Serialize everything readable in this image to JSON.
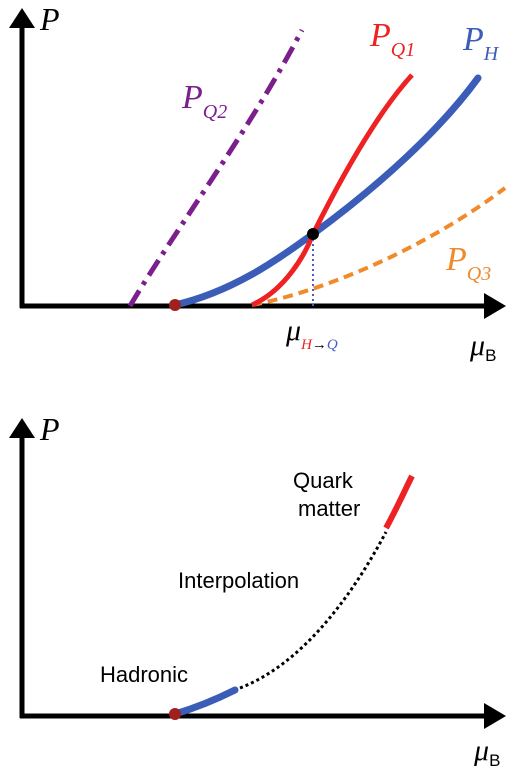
{
  "colors": {
    "axis": "#000000",
    "hadronic": "#3b5db8",
    "quark1": "#ee2222",
    "quark2": "#7a1f8c",
    "quark3": "#f08a2a",
    "crossing_guide": "#4a5cc0",
    "transition_point": "#000000",
    "onset_point": "#a02020",
    "interpolation": "#000000"
  },
  "top_panel": {
    "y_axis_label": "P",
    "x_axis_label_symbol": "μ",
    "x_axis_label_subscript": "B",
    "curves": [
      {
        "label_main": "P",
        "label_sub": "Q2"
      },
      {
        "label_main": "P",
        "label_sub": "Q1"
      },
      {
        "label_main": "P",
        "label_sub": "H"
      },
      {
        "label_main": "P",
        "label_sub": "Q3"
      }
    ],
    "transition_label_symbol": "μ",
    "transition_label_from": "H",
    "transition_label_arrow": "→",
    "transition_label_to": "Q"
  },
  "bottom_panel": {
    "y_axis_label": "P",
    "x_axis_label_symbol": "μ",
    "x_axis_label_subscript": "B",
    "label_quark_line1": "Quark",
    "label_quark_line2": "matter",
    "label_interpolation": "Interpolation",
    "label_hadronic": "Hadronic"
  }
}
